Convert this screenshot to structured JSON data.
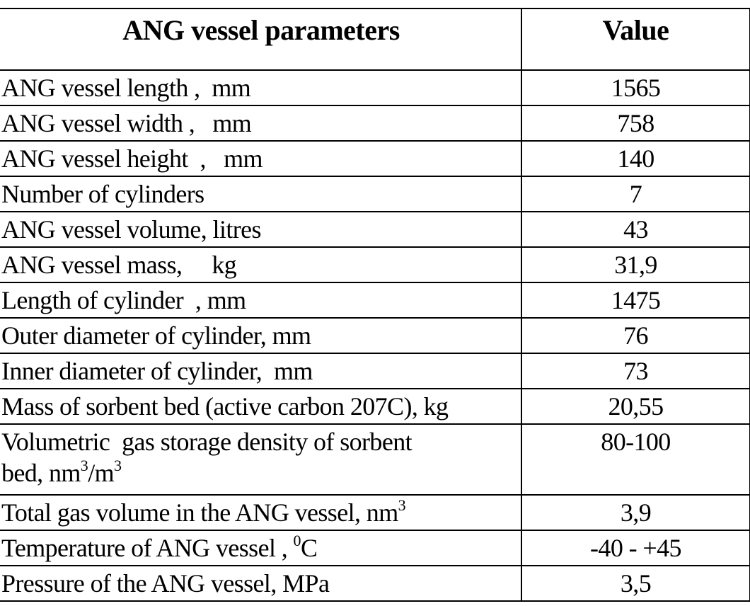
{
  "table": {
    "headers": [
      "ANG vessel parameters",
      "Value"
    ],
    "rows": [
      {
        "param": "ANG vessel length ,  mm",
        "value": "1565"
      },
      {
        "param": "ANG vessel width ,   mm",
        "value": "758"
      },
      {
        "param": "ANG vessel height  ,   mm",
        "value": "140"
      },
      {
        "param": "Number of cylinders",
        "value": "7"
      },
      {
        "param": "ANG vessel volume, litres",
        "value": "43"
      },
      {
        "param": "ANG vessel mass,     kg",
        "value": "31,9"
      },
      {
        "param": "Length of cylinder  , mm",
        "value": "1475"
      },
      {
        "param": "Outer diameter of cylinder, mm",
        "value": "76"
      },
      {
        "param": "Inner diameter of cylinder,  mm",
        "value": "73"
      },
      {
        "param": "Mass of sorbent bed (active carbon 207C), kg",
        "value": "20,55"
      },
      {
        "param_line1": "Volumetric  gas storage density of sorbent",
        "param_line2_a": "bed, nm",
        "param_line2_sup1": "3",
        "param_line2_b": "/m",
        "param_line2_sup2": "3",
        "value": "80-100"
      },
      {
        "param_a": "Total gas volume in the ANG vessel, nm",
        "param_sup": "3",
        "value": "3,9"
      },
      {
        "param_a": "Temperature of ANG vessel , ",
        "param_sup": "0",
        "param_b": "C",
        "value": "-40 - +45"
      },
      {
        "param": "Pressure of the ANG vessel, MPa",
        "value": "3,5"
      }
    ]
  }
}
